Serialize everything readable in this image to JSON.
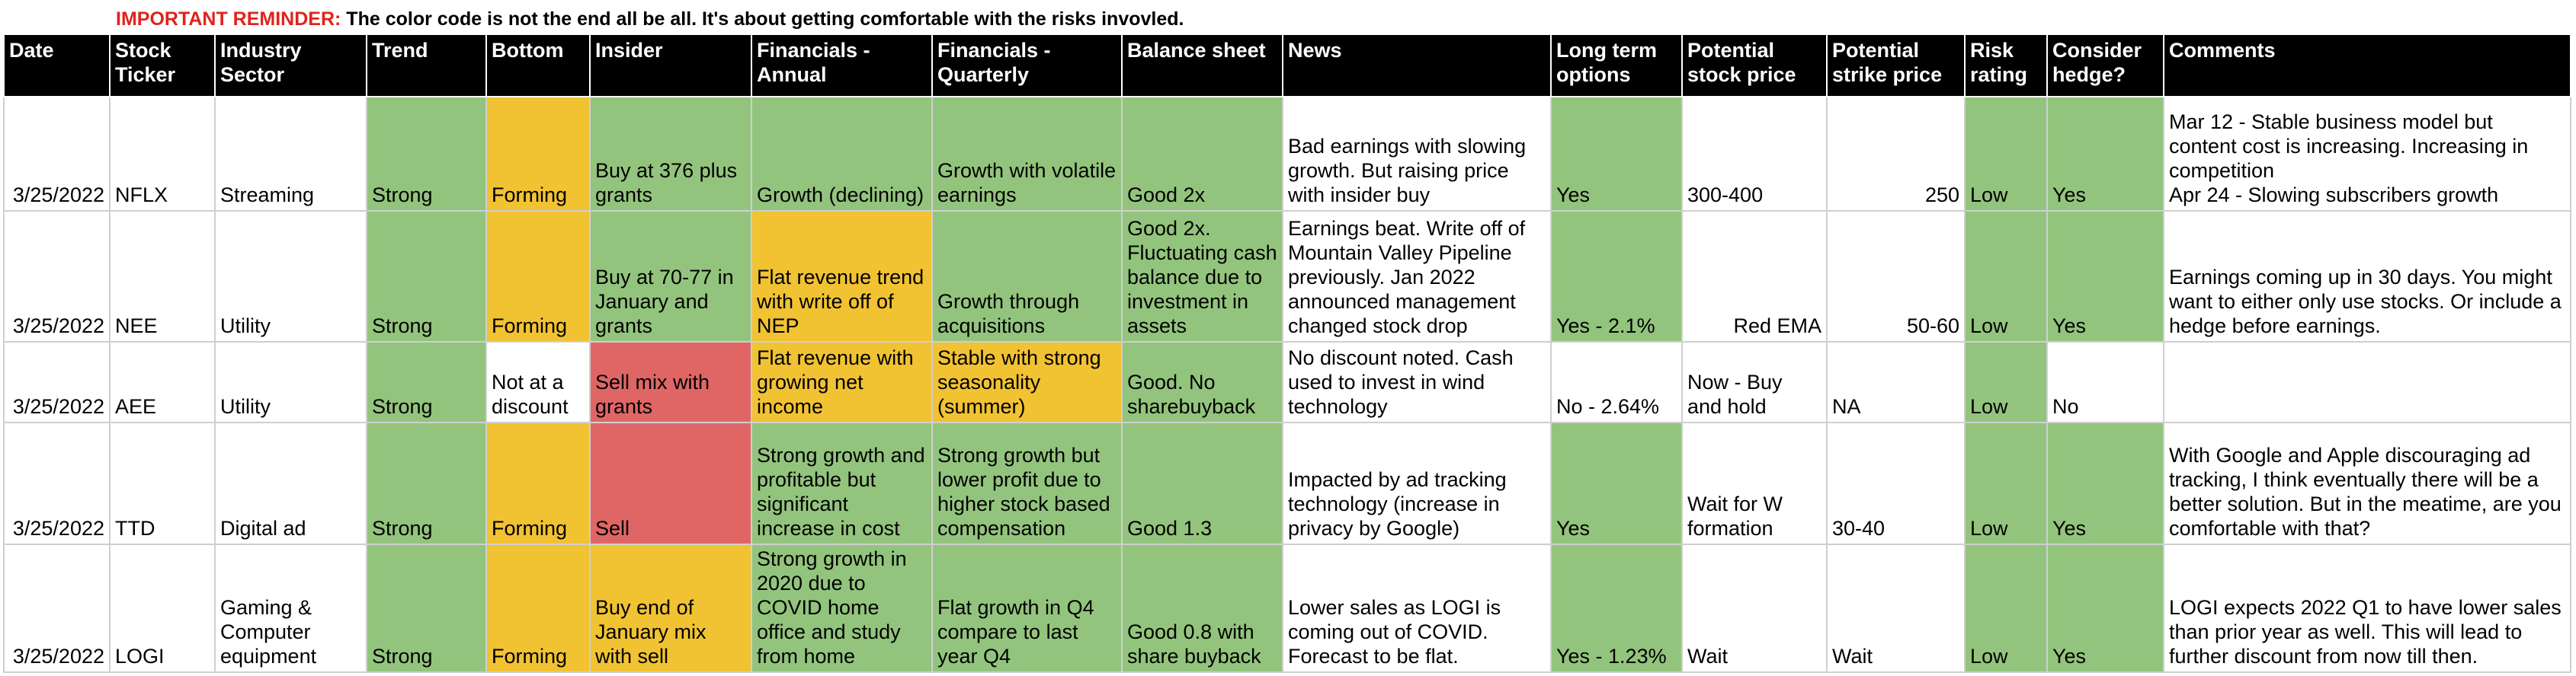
{
  "reminder": {
    "label": "IMPORTANT REMINDER:",
    "text": " The color code is not the end all be all. It's about getting comfortable with the risks invovled."
  },
  "headers": [
    "Date",
    "Stock\nTicker",
    "Industry Sector",
    "Trend",
    "Bottom",
    "Insider",
    "Financials -\nAnnual",
    "Financials -\nQuarterly",
    "Balance sheet",
    "News",
    "Long term\noptions",
    "Potential\nstock price",
    "Potential\nstrike price",
    "Risk\nrating",
    "Consider\nhedge?",
    "Comments"
  ],
  "colors": {
    "green": "#93c47d",
    "yellow": "#f1c232",
    "red": "#e06666",
    "white": "#ffffff",
    "header": "#000000"
  },
  "rows": [
    {
      "date": "3/25/2022",
      "ticker": "NFLX",
      "sector": "Streaming",
      "trend": "Strong",
      "bottom": "Forming",
      "insider": "Buy at 376 plus grants",
      "fin_annual": "Growth (declining)",
      "fin_quarterly": "Growth with volatile earnings",
      "balance": "Good 2x",
      "news": "Bad earnings with slowing growth. But raising price with insider buy",
      "options": "Yes",
      "stock_price": "300-400",
      "strike_price": "250",
      "risk": "Low",
      "hedge": "Yes",
      "comments": "Mar 12 - Stable business model but content cost is increasing. Increasing in competition\nApr 24 - Slowing subscribers growth"
    },
    {
      "date": "3/25/2022",
      "ticker": "NEE",
      "sector": "Utility",
      "trend": "Strong",
      "bottom": "Forming",
      "insider": "Buy at 70-77 in January and grants",
      "fin_annual": "Flat revenue trend with write off of NEP",
      "fin_quarterly": "Growth through acquisitions",
      "balance": "Good 2x. Fluctuating cash balance due to investment in assets",
      "news": "Earnings beat. Write off of Mountain Valley Pipeline previously. Jan 2022 announced management changed stock drop",
      "options": "Yes - 2.1%",
      "stock_price": "Red EMA",
      "strike_price": "50-60",
      "risk": "Low",
      "hedge": "Yes",
      "comments": "Earnings coming up in 30 days. You might want to either only use stocks. Or include a hedge before earnings."
    },
    {
      "date": "3/25/2022",
      "ticker": "AEE",
      "sector": "Utility",
      "trend": "Strong",
      "bottom": "Not at a discount",
      "insider": "Sell mix with grants",
      "fin_annual": "Flat revenue with growing net income",
      "fin_quarterly": "Stable with strong seasonality (summer)",
      "balance": "Good. No sharebuyback",
      "news": "No discount noted. Cash used to invest in wind technology",
      "options": "No - 2.64%",
      "stock_price": "Now - Buy and hold",
      "strike_price": "NA",
      "risk": "Low",
      "hedge": "No",
      "comments": ""
    },
    {
      "date": "3/25/2022",
      "ticker": "TTD",
      "sector": "Digital ad",
      "trend": "Strong",
      "bottom": "Forming",
      "insider": "Sell",
      "fin_annual": "Strong growth and profitable but significant increase in cost",
      "fin_quarterly": "Strong growth but lower profit due to higher stock based compensation",
      "balance": "Good 1.3",
      "news": "Impacted by ad tracking technology (increase in privacy by Google)",
      "options": "Yes",
      "stock_price": "Wait for W formation",
      "strike_price": "30-40",
      "risk": "Low",
      "hedge": "Yes",
      "comments": "With Google and Apple discouraging ad tracking, I think eventually there will be a better solution. But in the meatime, are you comfortable with that?"
    },
    {
      "date": "3/25/2022",
      "ticker": "LOGI",
      "sector": "Gaming & Computer equipment",
      "trend": "Strong",
      "bottom": "Forming",
      "insider": "Buy end of January mix with sell",
      "fin_annual": "Strong growth in 2020 due to COVID home office and study from home",
      "fin_quarterly": "Flat growth in Q4 compare to last year Q4",
      "balance": "Good 0.8 with share buyback",
      "news": "Lower sales as LOGI is coming out of COVID. Forecast to be flat.",
      "options": "Yes - 1.23%",
      "stock_price": "Wait",
      "strike_price": "Wait",
      "risk": "Low",
      "hedge": "Yes",
      "comments": "LOGI expects 2022 Q1 to have lower sales than prior year as well. This will lead to further discount from now till then."
    }
  ]
}
